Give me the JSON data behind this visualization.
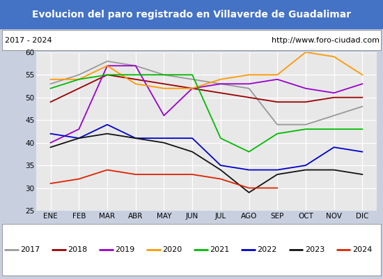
{
  "title": "Evolucion del paro registrado en Villaverde de Guadalimar",
  "title_bg": "#4472c4",
  "subtitle_left": "2017 - 2024",
  "subtitle_right": "http://www.foro-ciudad.com",
  "months": [
    "ENE",
    "FEB",
    "MAR",
    "ABR",
    "MAY",
    "JUN",
    "JUL",
    "AGO",
    "SEP",
    "OCT",
    "NOV",
    "DIC"
  ],
  "ylim": [
    25,
    60
  ],
  "yticks": [
    25,
    30,
    35,
    40,
    45,
    50,
    55,
    60
  ],
  "series": {
    "2017": {
      "color": "#999999",
      "values": [
        53,
        55,
        58,
        57,
        55,
        54,
        53,
        52,
        44,
        44,
        46,
        48
      ]
    },
    "2018": {
      "color": "#990000",
      "values": [
        49,
        52,
        55,
        54,
        53,
        52,
        51,
        50,
        49,
        49,
        50,
        50
      ]
    },
    "2019": {
      "color": "#9900cc",
      "values": [
        40,
        43,
        57,
        57,
        46,
        52,
        53,
        53,
        54,
        52,
        51,
        53
      ]
    },
    "2020": {
      "color": "#ff9900",
      "values": [
        54,
        54,
        57,
        53,
        52,
        52,
        54,
        55,
        55,
        60,
        59,
        55
      ]
    },
    "2021": {
      "color": "#00bb00",
      "values": [
        52,
        54,
        55,
        55,
        55,
        55,
        41,
        38,
        42,
        43,
        43,
        43
      ]
    },
    "2022": {
      "color": "#0000cc",
      "values": [
        42,
        41,
        44,
        41,
        41,
        41,
        35,
        34,
        34,
        35,
        39,
        38
      ]
    },
    "2023": {
      "color": "#111111",
      "values": [
        39,
        41,
        42,
        41,
        40,
        38,
        34,
        29,
        33,
        34,
        34,
        33
      ]
    },
    "2024": {
      "color": "#dd2200",
      "values": [
        31,
        32,
        34,
        33,
        33,
        33,
        32,
        30,
        30,
        null,
        null,
        null
      ]
    }
  },
  "legend_order": [
    "2017",
    "2018",
    "2019",
    "2020",
    "2021",
    "2022",
    "2023",
    "2024"
  ],
  "fig_bg": "#c8d0e0",
  "plot_bg": "#e8e8e8",
  "title_fontsize": 10,
  "subtitle_fontsize": 8,
  "tick_fontsize": 7.5
}
